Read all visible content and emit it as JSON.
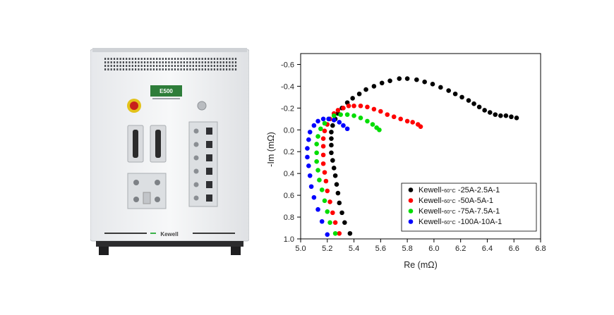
{
  "device": {
    "model_label": "E500",
    "brand_label": "Kewell"
  },
  "chart_data": {
    "type": "scatter",
    "title": "",
    "xlabel": "Re (mΩ)",
    "ylabel": "-Im (mΩ)",
    "xlim": [
      5.0,
      6.8
    ],
    "ylim": [
      -0.7,
      1.0
    ],
    "y_axis_inverted": true,
    "x_ticks": [
      "5.0",
      "5.2",
      "5.4",
      "5.6",
      "5.8",
      "6.0",
      "6.2",
      "6.4",
      "6.6",
      "6.8"
    ],
    "y_ticks": [
      "-0.6",
      "-0.4",
      "-0.2",
      "0.0",
      "0.2",
      "0.4",
      "0.6",
      "0.8",
      "1.0"
    ],
    "grid": false,
    "legend_position": "bottom-right",
    "series": [
      {
        "name": "Kewell-60°C -25A-2.5A-1",
        "name_parts": [
          "Kewell-",
          "60°C",
          " -25A-2.5A-1"
        ],
        "color": "#000000",
        "points": [
          [
            5.37,
            0.95
          ],
          [
            5.33,
            0.85
          ],
          [
            5.31,
            0.76
          ],
          [
            5.29,
            0.67
          ],
          [
            5.28,
            0.58
          ],
          [
            5.27,
            0.5
          ],
          [
            5.26,
            0.42
          ],
          [
            5.25,
            0.35
          ],
          [
            5.24,
            0.28
          ],
          [
            5.23,
            0.21
          ],
          [
            5.23,
            0.14
          ],
          [
            5.23,
            0.08
          ],
          [
            5.23,
            0.02
          ],
          [
            5.24,
            -0.04
          ],
          [
            5.26,
            -0.1
          ],
          [
            5.28,
            -0.15
          ],
          [
            5.31,
            -0.2
          ],
          [
            5.35,
            -0.25
          ],
          [
            5.39,
            -0.29
          ],
          [
            5.44,
            -0.33
          ],
          [
            5.49,
            -0.37
          ],
          [
            5.55,
            -0.4
          ],
          [
            5.61,
            -0.43
          ],
          [
            5.67,
            -0.45
          ],
          [
            5.74,
            -0.47
          ],
          [
            5.8,
            -0.47
          ],
          [
            5.87,
            -0.46
          ],
          [
            5.93,
            -0.44
          ],
          [
            5.99,
            -0.42
          ],
          [
            6.05,
            -0.39
          ],
          [
            6.11,
            -0.36
          ],
          [
            6.16,
            -0.33
          ],
          [
            6.21,
            -0.3
          ],
          [
            6.26,
            -0.27
          ],
          [
            6.3,
            -0.24
          ],
          [
            6.34,
            -0.21
          ],
          [
            6.38,
            -0.18
          ],
          [
            6.42,
            -0.16
          ],
          [
            6.46,
            -0.14
          ],
          [
            6.5,
            -0.13
          ],
          [
            6.54,
            -0.13
          ],
          [
            6.58,
            -0.12
          ],
          [
            6.62,
            -0.11
          ]
        ]
      },
      {
        "name": "Kewell-60°C -50A-5A-1",
        "name_parts": [
          "Kewell-",
          "60°C",
          " -50A-5A-1"
        ],
        "color": "#ff0000",
        "points": [
          [
            5.29,
            0.95
          ],
          [
            5.26,
            0.85
          ],
          [
            5.24,
            0.76
          ],
          [
            5.22,
            0.66
          ],
          [
            5.2,
            0.56
          ],
          [
            5.19,
            0.47
          ],
          [
            5.18,
            0.39
          ],
          [
            5.17,
            0.31
          ],
          [
            5.17,
            0.23
          ],
          [
            5.17,
            0.15
          ],
          [
            5.17,
            0.08
          ],
          [
            5.18,
            0.01
          ],
          [
            5.2,
            -0.05
          ],
          [
            5.22,
            -0.1
          ],
          [
            5.25,
            -0.15
          ],
          [
            5.28,
            -0.18
          ],
          [
            5.32,
            -0.2
          ],
          [
            5.36,
            -0.22
          ],
          [
            5.4,
            -0.22
          ],
          [
            5.45,
            -0.22
          ],
          [
            5.5,
            -0.21
          ],
          [
            5.55,
            -0.19
          ],
          [
            5.6,
            -0.17
          ],
          [
            5.65,
            -0.14
          ],
          [
            5.7,
            -0.12
          ],
          [
            5.75,
            -0.1
          ],
          [
            5.8,
            -0.08
          ],
          [
            5.84,
            -0.07
          ],
          [
            5.88,
            -0.05
          ],
          [
            5.9,
            -0.03
          ]
        ]
      },
      {
        "name": "Kewell-60°C -75A-7.5A-1",
        "name_parts": [
          "Kewell-",
          "60°C",
          " -75A-7.5A-1"
        ],
        "color": "#00dd00",
        "points": [
          [
            5.26,
            0.95
          ],
          [
            5.22,
            0.85
          ],
          [
            5.2,
            0.75
          ],
          [
            5.18,
            0.65
          ],
          [
            5.16,
            0.55
          ],
          [
            5.14,
            0.46
          ],
          [
            5.13,
            0.37
          ],
          [
            5.12,
            0.29
          ],
          [
            5.12,
            0.21
          ],
          [
            5.12,
            0.13
          ],
          [
            5.13,
            0.06
          ],
          [
            5.15,
            -0.01
          ],
          [
            5.18,
            -0.06
          ],
          [
            5.21,
            -0.1
          ],
          [
            5.25,
            -0.13
          ],
          [
            5.3,
            -0.14
          ],
          [
            5.35,
            -0.14
          ],
          [
            5.4,
            -0.13
          ],
          [
            5.45,
            -0.11
          ],
          [
            5.5,
            -0.08
          ],
          [
            5.54,
            -0.05
          ],
          [
            5.57,
            -0.02
          ],
          [
            5.59,
            0.0
          ]
        ]
      },
      {
        "name": "Kewell-60°C -100A-10A-1",
        "name_parts": [
          "Kewell-",
          "60°C",
          " -100A-10A-1"
        ],
        "color": "#0000ff",
        "points": [
          [
            5.2,
            0.96
          ],
          [
            5.16,
            0.84
          ],
          [
            5.13,
            0.73
          ],
          [
            5.1,
            0.62
          ],
          [
            5.08,
            0.52
          ],
          [
            5.07,
            0.42
          ],
          [
            5.06,
            0.33
          ],
          [
            5.05,
            0.25
          ],
          [
            5.05,
            0.17
          ],
          [
            5.06,
            0.09
          ],
          [
            5.07,
            0.02
          ],
          [
            5.1,
            -0.04
          ],
          [
            5.13,
            -0.08
          ],
          [
            5.17,
            -0.1
          ],
          [
            5.21,
            -0.1
          ],
          [
            5.25,
            -0.09
          ],
          [
            5.29,
            -0.07
          ],
          [
            5.32,
            -0.04
          ],
          [
            5.35,
            -0.01
          ]
        ]
      }
    ]
  }
}
